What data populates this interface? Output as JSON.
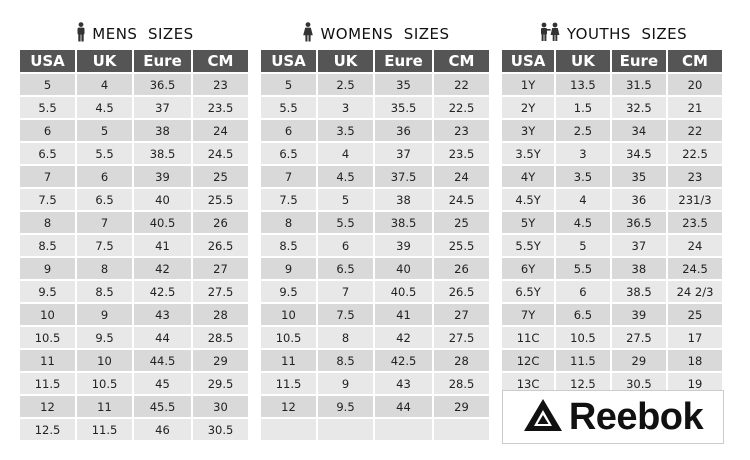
{
  "mens": {
    "title": "MENS  SIZES",
    "icon": "man-icon",
    "columns": [
      "USA",
      "UK",
      "Eure",
      "CM"
    ],
    "rows": [
      [
        "5",
        "4",
        "36.5",
        "23"
      ],
      [
        "5.5",
        "4.5",
        "37",
        "23.5"
      ],
      [
        "6",
        "5",
        "38",
        "24"
      ],
      [
        "6.5",
        "5.5",
        "38.5",
        "24.5"
      ],
      [
        "7",
        "6",
        "39",
        "25"
      ],
      [
        "7.5",
        "6.5",
        "40",
        "25.5"
      ],
      [
        "8",
        "7",
        "40.5",
        "26"
      ],
      [
        "8.5",
        "7.5",
        "41",
        "26.5"
      ],
      [
        "9",
        "8",
        "42",
        "27"
      ],
      [
        "9.5",
        "8.5",
        "42.5",
        "27.5"
      ],
      [
        "10",
        "9",
        "43",
        "28"
      ],
      [
        "10.5",
        "9.5",
        "44",
        "28.5"
      ],
      [
        "11",
        "10",
        "44.5",
        "29"
      ],
      [
        "11.5",
        "10.5",
        "45",
        "29.5"
      ],
      [
        "12",
        "11",
        "45.5",
        "30"
      ],
      [
        "12.5",
        "11.5",
        "46",
        "30.5"
      ]
    ]
  },
  "womens": {
    "title": "WOMENS  SIZES",
    "icon": "woman-icon",
    "columns": [
      "USA",
      "UK",
      "Eure",
      "CM"
    ],
    "rows": [
      [
        "5",
        "2.5",
        "35",
        "22"
      ],
      [
        "5.5",
        "3",
        "35.5",
        "22.5"
      ],
      [
        "6",
        "3.5",
        "36",
        "23"
      ],
      [
        "6.5",
        "4",
        "37",
        "23.5"
      ],
      [
        "7",
        "4.5",
        "37.5",
        "24"
      ],
      [
        "7.5",
        "5",
        "38",
        "24.5"
      ],
      [
        "8",
        "5.5",
        "38.5",
        "25"
      ],
      [
        "8.5",
        "6",
        "39",
        "25.5"
      ],
      [
        "9",
        "6.5",
        "40",
        "26"
      ],
      [
        "9.5",
        "7",
        "40.5",
        "26.5"
      ],
      [
        "10",
        "7.5",
        "41",
        "27"
      ],
      [
        "10.5",
        "8",
        "42",
        "27.5"
      ],
      [
        "11",
        "8.5",
        "42.5",
        "28"
      ],
      [
        "11.5",
        "9",
        "43",
        "28.5"
      ],
      [
        "12",
        "9.5",
        "44",
        "29"
      ],
      [
        "",
        "",
        "",
        ""
      ]
    ]
  },
  "youths": {
    "title": "YOUTHS  SIZES",
    "icon": "children-icon",
    "columns": [
      "USA",
      "UK",
      "Eure",
      "CM"
    ],
    "rows": [
      [
        "1Y",
        "13.5",
        "31.5",
        "20"
      ],
      [
        "2Y",
        "1.5",
        "32.5",
        "21"
      ],
      [
        "3Y",
        "2.5",
        "34",
        "22"
      ],
      [
        "3.5Y",
        "3",
        "34.5",
        "22.5"
      ],
      [
        "4Y",
        "3.5",
        "35",
        "23"
      ],
      [
        "4.5Y",
        "4",
        "36",
        "231/3"
      ],
      [
        "5Y",
        "4.5",
        "36.5",
        "23.5"
      ],
      [
        "5.5Y",
        "5",
        "37",
        "24"
      ],
      [
        "6Y",
        "5.5",
        "38",
        "24.5"
      ],
      [
        "6.5Y",
        "6",
        "38.5",
        "24 2/3"
      ],
      [
        "7Y",
        "6.5",
        "39",
        "25"
      ],
      [
        "11C",
        "10.5",
        "27.5",
        "17"
      ],
      [
        "12C",
        "11.5",
        "29",
        "18"
      ],
      [
        "13C",
        "12.5",
        "30.5",
        "19"
      ]
    ]
  },
  "brand": {
    "name": "Reebok",
    "icon": "reebok-delta-logo-icon",
    "color": "#111111"
  },
  "colors": {
    "header_bg": "#555555",
    "cell_bg": "#d9d9d9"
  }
}
